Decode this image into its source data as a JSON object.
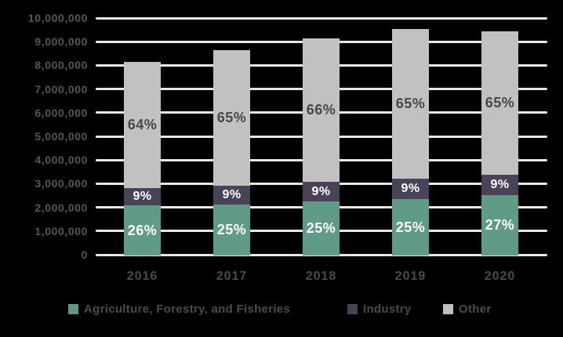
{
  "chart_data": {
    "type": "bar",
    "stacked": true,
    "title": "",
    "categories": [
      "2016",
      "2017",
      "2018",
      "2019",
      "2020"
    ],
    "totals": [
      8200000,
      8700000,
      9200000,
      9600000,
      9500000
    ],
    "series": [
      {
        "name": "Agriculture, Forestry, and Fisheries",
        "key": "agriculture-forestry-fisheries",
        "color": "#5f9b86",
        "percents": [
          26,
          25,
          25,
          25,
          27
        ],
        "labels": [
          "26%",
          "25%",
          "25%",
          "25%",
          "27%"
        ]
      },
      {
        "name": "Industry",
        "key": "industry",
        "color": "#4a4358",
        "percents": [
          9,
          9,
          9,
          9,
          9
        ],
        "labels": [
          "9%",
          "9%",
          "9%",
          "9%",
          "9%"
        ]
      },
      {
        "name": "Other",
        "key": "other",
        "color": "#c1c1c1",
        "percents": [
          64,
          65,
          66,
          65,
          65
        ],
        "labels": [
          "64%",
          "65%",
          "66%",
          "65%",
          "65%"
        ]
      }
    ],
    "y_axis": {
      "min": 0,
      "max": 10000000,
      "tick_step": 1000000,
      "tick_labels": [
        "0",
        "1,000,000",
        "2,000,000",
        "3,000,000",
        "4,000,000",
        "5,000,000",
        "6,000,000",
        "7,000,000",
        "8,000,000",
        "9,000,000",
        "10,000,000"
      ]
    },
    "x_axis": {
      "label": ""
    },
    "legend": {
      "position": "bottom",
      "entries": [
        "Agriculture, Forestry, and Fisheries",
        "Industry",
        "Other"
      ]
    },
    "gridlines": true,
    "colors": {
      "background": "#000000",
      "gridline": "#e7e7e6",
      "axis_text": "#565659",
      "category_text": "#4b4b4e",
      "label_on_dark_segment": "#ffffff",
      "label_on_light_segment": "#47474a"
    }
  }
}
